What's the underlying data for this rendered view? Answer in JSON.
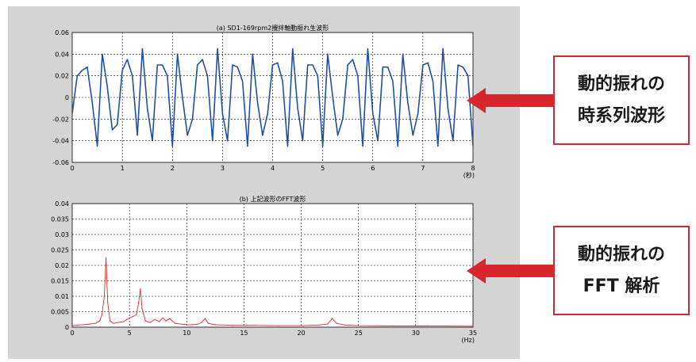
{
  "colors": {
    "panel_bg": "#d4d4d4",
    "plot_bg": "#ffffff",
    "series_top": "#1f4fa8",
    "series_bottom": "#e8262d",
    "callout_border": "#d8262d",
    "arrow": "#d8262d"
  },
  "callouts": [
    {
      "line1": "動的振れの",
      "line2": "時系列波形"
    },
    {
      "line1": "動的振れの",
      "line2": "FFT 解析"
    }
  ],
  "chart_data": [
    {
      "type": "line",
      "title": "(a) SD1-169rpm2攪拌軸動振れ生波形",
      "x_unit": "(秒)",
      "xlim": [
        0,
        8
      ],
      "ylim": [
        -0.06,
        0.06
      ],
      "x_ticks": [
        "0",
        "1",
        "2",
        "3",
        "4",
        "5",
        "6",
        "7",
        "8"
      ],
      "y_ticks": [
        "0.06",
        "0.04",
        "0.02",
        "0",
        "-0.02",
        "-0.04",
        "-0.06"
      ],
      "grid": true,
      "series": [
        {
          "color": "#1f4fa8",
          "x": [
            0.0,
            0.1,
            0.2,
            0.3,
            0.4,
            0.5,
            0.6,
            0.7,
            0.8,
            0.9,
            1.0,
            1.1,
            1.2,
            1.3,
            1.4,
            1.5,
            1.6,
            1.7,
            1.8,
            1.9,
            2.0,
            2.1,
            2.2,
            2.3,
            2.4,
            2.5,
            2.6,
            2.7,
            2.8,
            2.9,
            3.0,
            3.1,
            3.2,
            3.3,
            3.4,
            3.5,
            3.6,
            3.7,
            3.8,
            3.9,
            4.0,
            4.1,
            4.2,
            4.3,
            4.4,
            4.5,
            4.6,
            4.7,
            4.8,
            4.9,
            5.0,
            5.1,
            5.2,
            5.3,
            5.4,
            5.5,
            5.6,
            5.7,
            5.8,
            5.9,
            6.0,
            6.1,
            6.2,
            6.3,
            6.4,
            6.5,
            6.6,
            6.7,
            6.8,
            6.9,
            7.0,
            7.1,
            7.2,
            7.3,
            7.4,
            7.5,
            7.6,
            7.7,
            7.8,
            7.9,
            8.0
          ],
          "y": [
            -0.015,
            0.02,
            0.025,
            0.028,
            -0.005,
            -0.045,
            0.04,
            0.01,
            -0.03,
            -0.025,
            0.025,
            0.035,
            0.02,
            -0.035,
            0.045,
            -0.01,
            -0.04,
            0.03,
            0.03,
            0.02,
            -0.045,
            0.04,
            0.0,
            -0.035,
            -0.02,
            0.03,
            0.035,
            0.02,
            -0.04,
            0.045,
            -0.015,
            -0.04,
            0.03,
            0.028,
            0.015,
            -0.045,
            0.04,
            -0.005,
            -0.035,
            -0.015,
            0.03,
            0.032,
            0.015,
            -0.045,
            0.045,
            -0.01,
            -0.04,
            0.03,
            0.03,
            0.02,
            -0.045,
            0.04,
            0.0,
            -0.035,
            -0.02,
            0.03,
            0.035,
            0.02,
            -0.045,
            0.045,
            -0.015,
            -0.04,
            0.028,
            0.028,
            0.015,
            -0.045,
            0.04,
            -0.005,
            -0.035,
            -0.015,
            0.03,
            0.032,
            0.015,
            -0.045,
            0.045,
            -0.01,
            -0.04,
            0.03,
            0.028,
            0.02,
            -0.045
          ]
        }
      ]
    },
    {
      "type": "line",
      "title": "(b) 上記波形のFFT波形",
      "x_unit": "(Hz)",
      "xlim": [
        0,
        35
      ],
      "ylim": [
        0,
        0.04
      ],
      "x_ticks": [
        "0",
        "5",
        "10",
        "15",
        "20",
        "25",
        "30",
        "35"
      ],
      "y_ticks": [
        "0.04",
        "0.035",
        "0.03",
        "0.025",
        "0.02",
        "0.015",
        "0.01",
        "0.005",
        "0"
      ],
      "grid": true,
      "series": [
        {
          "color": "#e8262d",
          "x": [
            0,
            0.5,
            1.0,
            1.5,
            2.0,
            2.4,
            2.6,
            2.8,
            2.95,
            3.1,
            3.3,
            3.6,
            4.0,
            4.5,
            5.0,
            5.3,
            5.6,
            5.8,
            5.95,
            6.1,
            6.4,
            6.8,
            7.2,
            7.6,
            7.9,
            8.2,
            8.5,
            9.0,
            9.5,
            10.0,
            10.5,
            11.0,
            11.3,
            11.6,
            11.9,
            12.5,
            14.0,
            16.0,
            18.0,
            20.0,
            21.5,
            22.3,
            22.7,
            23.1,
            23.8,
            25.0,
            28.0,
            31.0,
            35.0
          ],
          "y": [
            0.0005,
            0.0007,
            0.0008,
            0.001,
            0.0012,
            0.002,
            0.004,
            0.01,
            0.0225,
            0.008,
            0.002,
            0.0012,
            0.0015,
            0.0018,
            0.003,
            0.0035,
            0.004,
            0.008,
            0.0125,
            0.006,
            0.002,
            0.0015,
            0.0025,
            0.0018,
            0.003,
            0.002,
            0.0028,
            0.0012,
            0.001,
            0.0008,
            0.0008,
            0.001,
            0.0015,
            0.0028,
            0.0012,
            0.0008,
            0.0006,
            0.0006,
            0.0005,
            0.0005,
            0.0007,
            0.001,
            0.0028,
            0.0012,
            0.0007,
            0.0005,
            0.0004,
            0.0004,
            0.0003
          ]
        }
      ]
    }
  ]
}
